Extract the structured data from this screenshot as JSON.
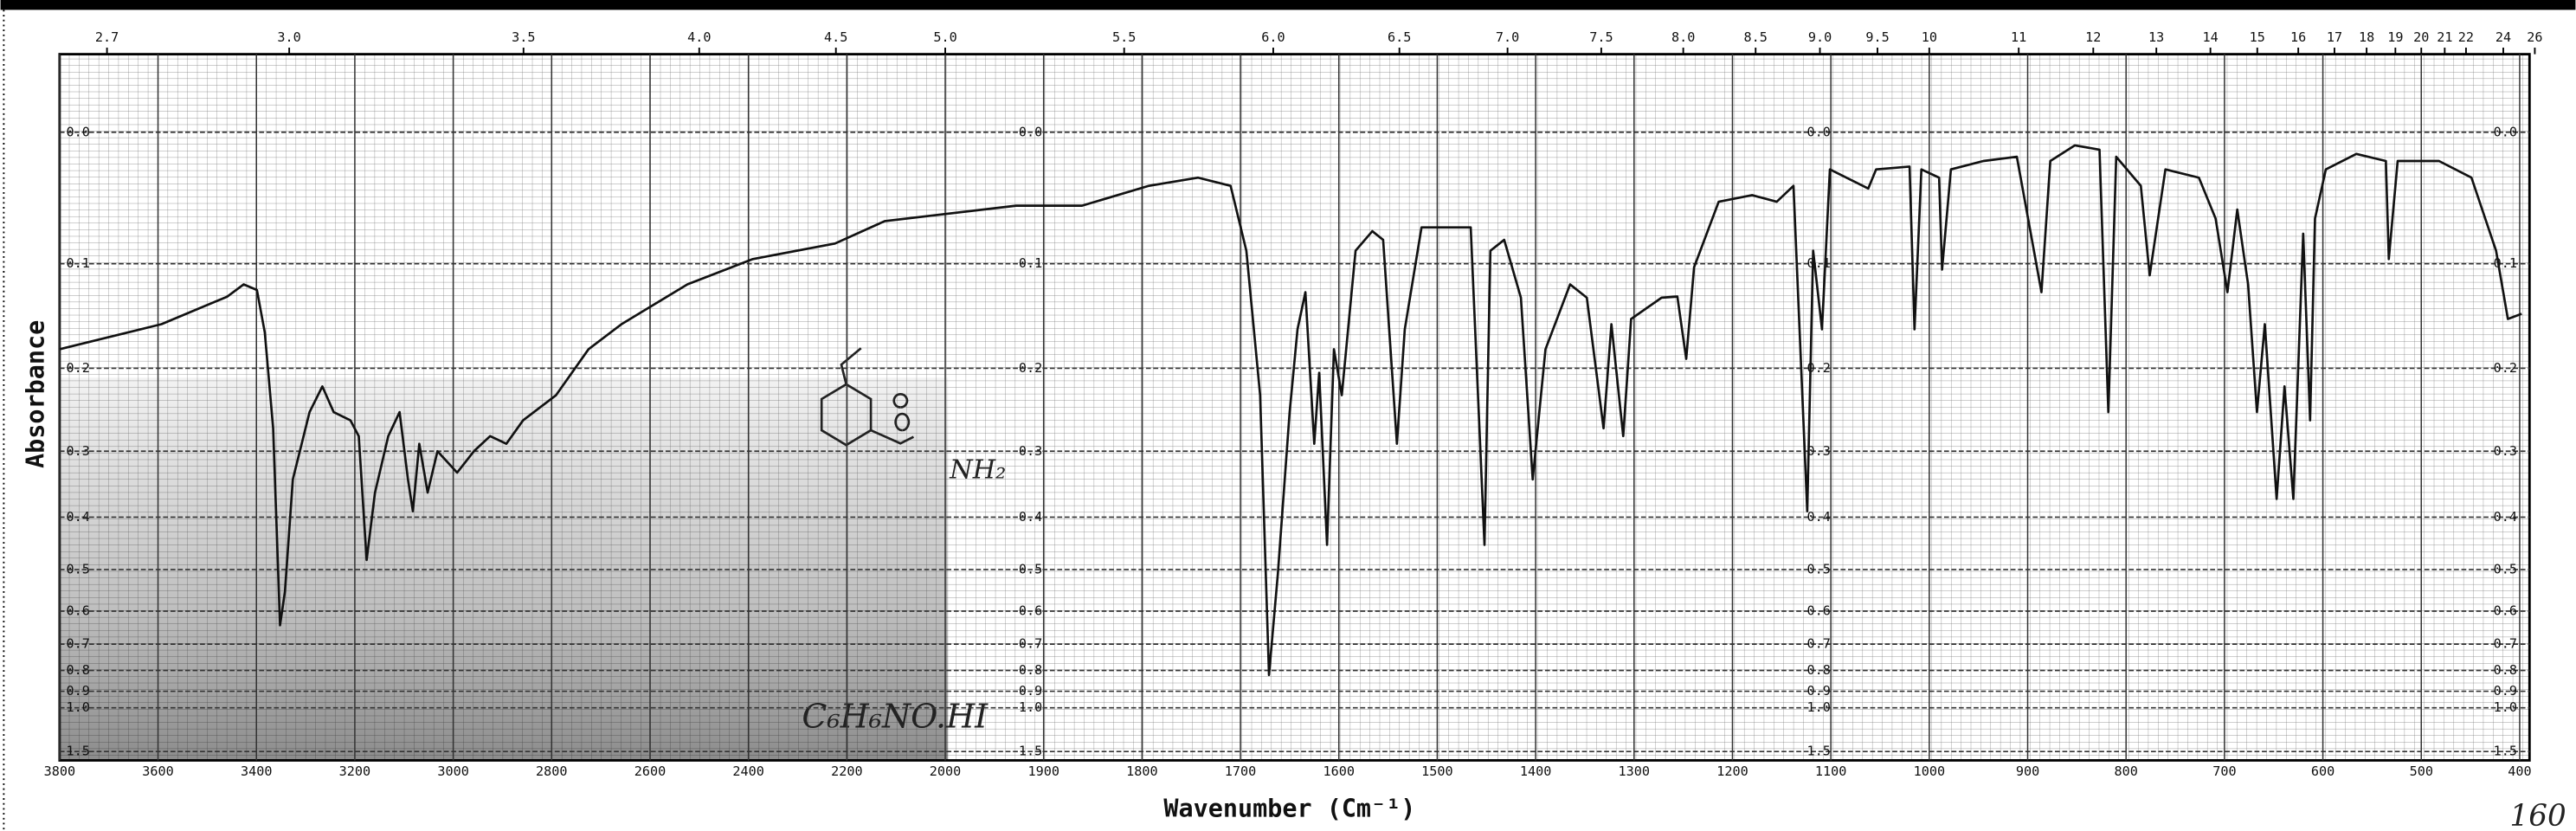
{
  "chart_data": {
    "type": "line",
    "y_label": "Absorbance",
    "x_label": "Wavenumber (Cm⁻¹)",
    "annotations": [
      "C₆H₆NO.HI",
      "NH₂",
      "160"
    ],
    "color": "#111111",
    "grid": true,
    "yscale": "transmittance",
    "x_scale_break": 2000,
    "xlim": [
      3800,
      390
    ],
    "ylim": [
      -0.05,
      1.75
    ],
    "xticks": [
      3800,
      3600,
      3400,
      3200,
      3000,
      2800,
      2600,
      2400,
      2200,
      2000,
      1900,
      1800,
      1700,
      1600,
      1500,
      1400,
      1300,
      1200,
      1100,
      1000,
      900,
      800,
      700,
      600,
      500,
      400
    ],
    "x2ticks": [
      2.7,
      {
        "value": 3,
        "label": "3.0"
      },
      3.5,
      {
        "value": 4,
        "label": "4.0"
      },
      4.5,
      {
        "value": 5,
        "label": "5.0"
      },
      5.5,
      {
        "value": 6,
        "label": "6.0"
      },
      6.5,
      {
        "value": 7,
        "label": "7.0"
      },
      7.5,
      {
        "value": 8,
        "label": "8.0"
      },
      8.5,
      {
        "value": 9,
        "label": "9.0"
      },
      9.5,
      10,
      11,
      12,
      13,
      14,
      15,
      16,
      17,
      18,
      19,
      20,
      21,
      22,
      24,
      26
    ],
    "yticks": [
      {
        "value": 0,
        "label": "0.0"
      },
      0.1,
      0.2,
      0.3,
      0.4,
      0.5,
      0.6,
      0.7,
      0.8,
      0.9,
      {
        "value": 1,
        "label": "1.0"
      },
      1.5
    ],
    "x": [
      3800,
      3593,
      3459,
      3426,
      3399,
      3383,
      3366,
      3352,
      3342,
      3326,
      3292,
      3266,
      3243,
      3209,
      3192,
      3176,
      3159,
      3132,
      3109,
      3092,
      3082,
      3069,
      3052,
      3032,
      2992,
      2958,
      2925,
      2892,
      2858,
      2791,
      2725,
      2658,
      2524,
      2391,
      2224,
      2123,
      1995,
      1928,
      1861,
      1793,
      1743,
      1710,
      1694,
      1680,
      1671,
      1662,
      1650,
      1642,
      1634,
      1625,
      1620,
      1612,
      1605,
      1597,
      1583,
      1566,
      1555,
      1541,
      1533,
      1516,
      1466,
      1452,
      1446,
      1432,
      1415,
      1403,
      1390,
      1365,
      1348,
      1331,
      1323,
      1311,
      1303,
      1272,
      1256,
      1247,
      1239,
      1214,
      1180,
      1155,
      1138,
      1124,
      1118,
      1109,
      1101,
      1062,
      1054,
      1020,
      1015,
      1008,
      990,
      987,
      978,
      945,
      911,
      886,
      877,
      852,
      827,
      818,
      810,
      785,
      776,
      760,
      726,
      709,
      697,
      687,
      676,
      667,
      659,
      647,
      639,
      630,
      620,
      613,
      608,
      597,
      566,
      536,
      533,
      524,
      482,
      449,
      424,
      412,
      398
    ],
    "values": [
      0.18,
      0.155,
      0.129,
      0.118,
      0.123,
      0.163,
      0.27,
      0.64,
      0.55,
      0.34,
      0.25,
      0.22,
      0.25,
      0.26,
      0.28,
      0.48,
      0.36,
      0.28,
      0.25,
      0.34,
      0.39,
      0.29,
      0.36,
      0.3,
      0.33,
      0.3,
      0.28,
      0.29,
      0.26,
      0.23,
      0.18,
      0.155,
      0.118,
      0.096,
      0.083,
      0.065,
      0.059,
      0.053,
      0.053,
      0.038,
      0.032,
      0.038,
      0.089,
      0.23,
      0.82,
      0.51,
      0.25,
      0.16,
      0.125,
      0.29,
      0.205,
      0.45,
      0.18,
      0.23,
      0.089,
      0.073,
      0.08,
      0.29,
      0.16,
      0.07,
      0.07,
      0.45,
      0.089,
      0.08,
      0.13,
      0.34,
      0.18,
      0.118,
      0.13,
      0.27,
      0.155,
      0.28,
      0.15,
      0.13,
      0.129,
      0.19,
      0.103,
      0.05,
      0.045,
      0.05,
      0.038,
      0.39,
      0.089,
      0.16,
      0.026,
      0.04,
      0.026,
      0.024,
      0.16,
      0.026,
      0.032,
      0.105,
      0.026,
      0.02,
      0.017,
      0.125,
      0.02,
      0.009,
      0.012,
      0.25,
      0.017,
      0.038,
      0.11,
      0.026,
      0.032,
      0.063,
      0.125,
      0.056,
      0.118,
      0.25,
      0.155,
      0.37,
      0.22,
      0.37,
      0.075,
      0.26,
      0.063,
      0.026,
      0.015,
      0.02,
      0.096,
      0.02,
      0.02,
      0.032,
      0.089,
      0.15,
      0.145
    ]
  }
}
